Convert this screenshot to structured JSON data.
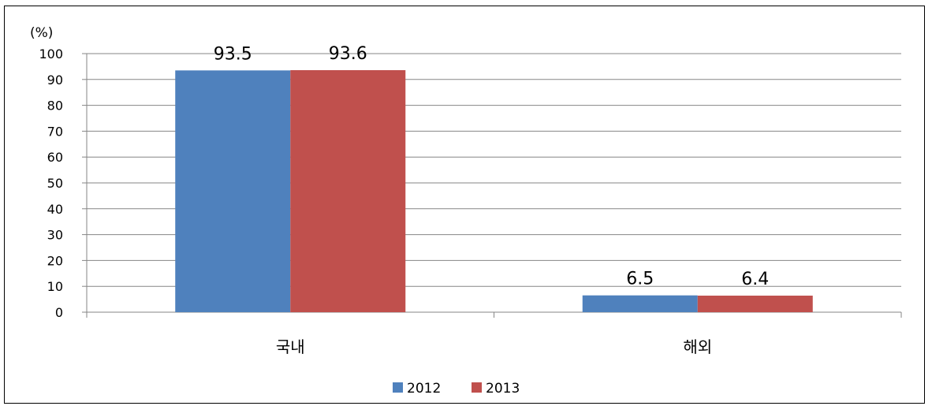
{
  "chart_data": {
    "type": "bar",
    "title": "",
    "xlabel": "",
    "ylabel": "(%)",
    "ylim": [
      0,
      100
    ],
    "yticks": [
      0,
      10,
      20,
      30,
      40,
      50,
      60,
      70,
      80,
      90,
      100
    ],
    "categories": [
      "국내",
      "해외"
    ],
    "series": [
      {
        "name": "2012",
        "values": [
          93.5,
          6.5
        ],
        "labels": [
          "93.5",
          "6.5"
        ],
        "color": "#4F81BD"
      },
      {
        "name": "2013",
        "values": [
          93.6,
          6.4
        ],
        "labels": [
          "93.6",
          "6.4"
        ],
        "color": "#C0504D"
      }
    ],
    "grid": true,
    "legend_position": "bottom"
  }
}
